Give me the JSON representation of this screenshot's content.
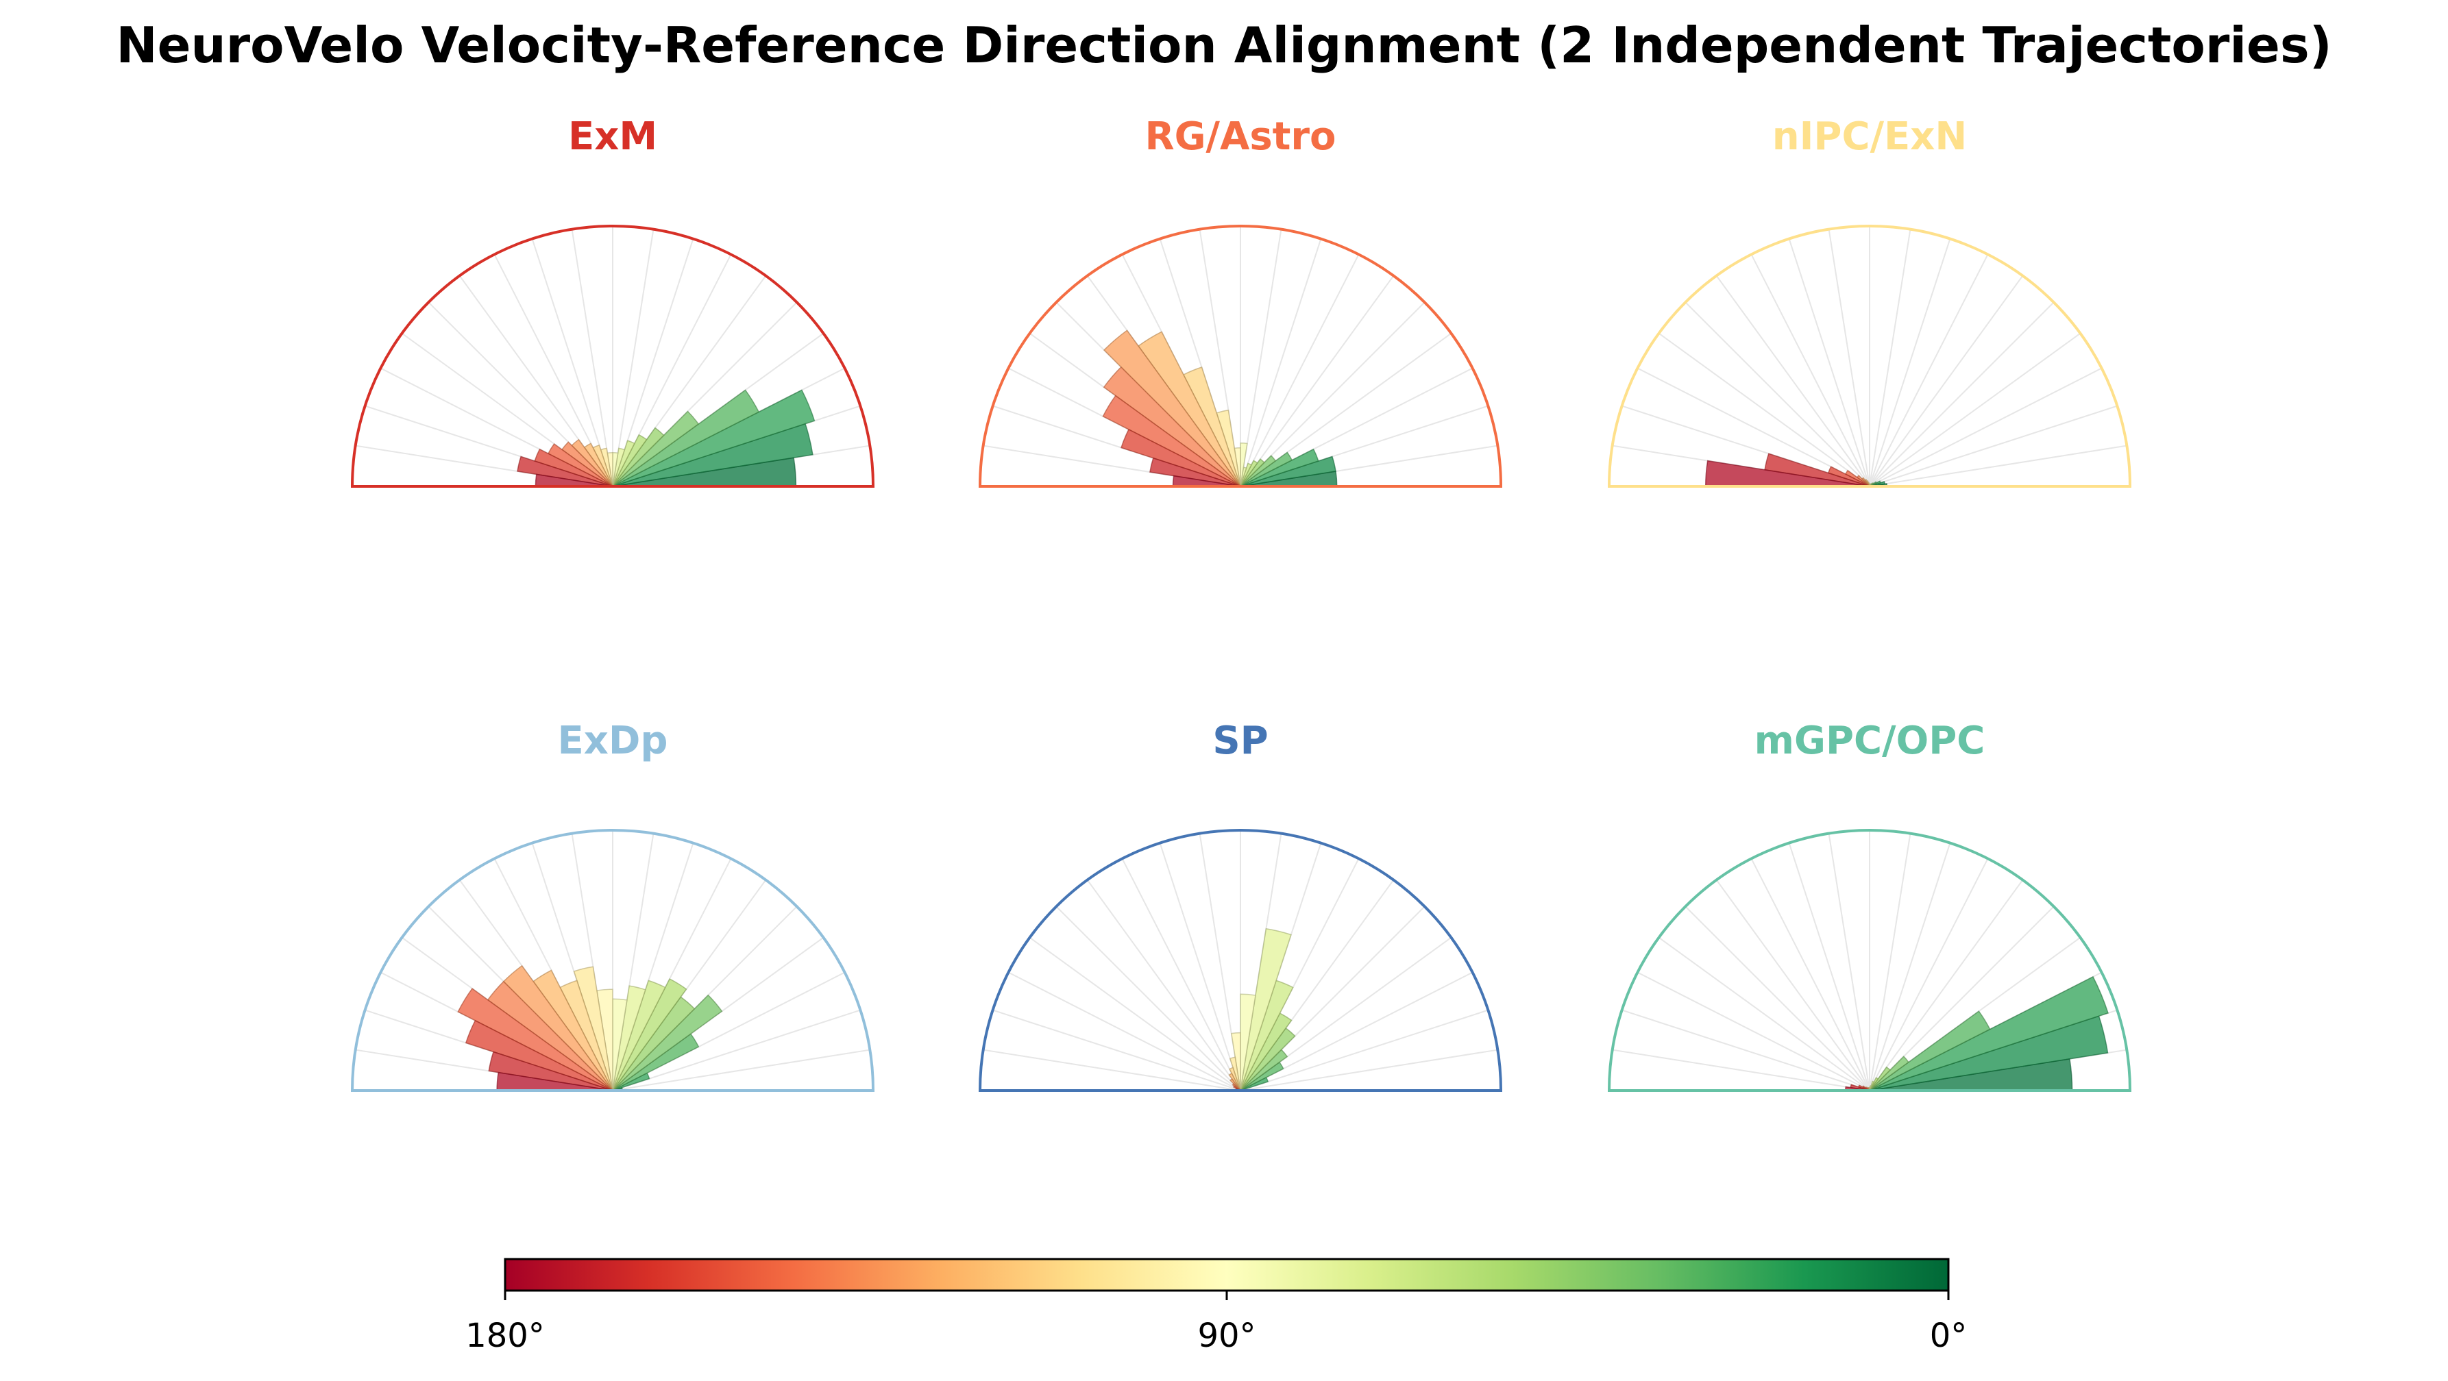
{
  "title": "NeuroVelo Velocity-Reference Direction Alignment (2 Independent Trajectories)",
  "colorbar": {
    "ticks": [
      "180°",
      "90°",
      "0°"
    ],
    "colormap": [
      "#a50026",
      "#d73027",
      "#f46d43",
      "#fdae61",
      "#fee08b",
      "#ffffbf",
      "#d9ef8b",
      "#a6d96a",
      "#66bd63",
      "#1a9850",
      "#006837"
    ]
  },
  "chart_data": [
    {
      "type": "polar-bar",
      "title": "ExM",
      "color": "#d73027",
      "angle_range_deg": [
        0,
        180
      ],
      "bin_width_deg": 9,
      "grid": true,
      "bins_deg": [
        4.5,
        13.5,
        22.5,
        31.5,
        40.5,
        49.5,
        58.5,
        67.5,
        76.5,
        85.5,
        94.5,
        103.5,
        112.5,
        121.5,
        130.5,
        139.5,
        148.5,
        157.5,
        166.5,
        175.5
      ],
      "values": [
        0.19,
        0.21,
        0.22,
        0.17,
        0.11,
        0.075,
        0.06,
        0.05,
        0.04,
        0.035,
        0.035,
        0.04,
        0.045,
        0.05,
        0.06,
        0.065,
        0.075,
        0.085,
        0.1,
        0.08
      ]
    },
    {
      "type": "polar-bar",
      "title": "RG/Astro",
      "color": "#f46d43",
      "angle_range_deg": [
        0,
        180
      ],
      "bin_width_deg": 9,
      "grid": true,
      "bins_deg": [
        4.5,
        13.5,
        22.5,
        31.5,
        40.5,
        49.5,
        58.5,
        67.5,
        76.5,
        85.5,
        94.5,
        103.5,
        112.5,
        121.5,
        130.5,
        139.5,
        148.5,
        157.5,
        166.5,
        175.5
      ],
      "values": [
        0.1,
        0.1,
        0.085,
        0.06,
        0.045,
        0.035,
        0.03,
        0.025,
        0.02,
        0.045,
        0.04,
        0.08,
        0.13,
        0.18,
        0.2,
        0.175,
        0.16,
        0.13,
        0.095,
        0.07
      ]
    },
    {
      "type": "polar-bar",
      "title": "nIPC/ExN",
      "color": "#fee08b",
      "angle_range_deg": [
        0,
        180
      ],
      "bin_width_deg": 9,
      "grid": true,
      "bins_deg": [
        4.5,
        13.5,
        22.5,
        31.5,
        40.5,
        49.5,
        58.5,
        67.5,
        76.5,
        85.5,
        94.5,
        103.5,
        112.5,
        121.5,
        130.5,
        139.5,
        148.5,
        157.5,
        166.5,
        175.5
      ],
      "values": [
        0.018,
        0.016,
        0.012,
        0.008,
        0.005,
        0.004,
        0.003,
        0.002,
        0.002,
        0.002,
        0.003,
        0.004,
        0.006,
        0.008,
        0.011,
        0.016,
        0.028,
        0.045,
        0.11,
        0.17
      ]
    },
    {
      "type": "polar-bar",
      "title": "ExDp",
      "color": "#91bfdb",
      "angle_range_deg": [
        0,
        180
      ],
      "bin_width_deg": 9,
      "grid": true,
      "bins_deg": [
        4.5,
        13.5,
        22.5,
        31.5,
        40.5,
        49.5,
        58.5,
        67.5,
        76.5,
        85.5,
        94.5,
        103.5,
        112.5,
        121.5,
        130.5,
        139.5,
        148.5,
        157.5,
        166.5,
        175.5
      ],
      "values": [
        0.005,
        0.01,
        0.04,
        0.1,
        0.14,
        0.12,
        0.13,
        0.12,
        0.11,
        0.095,
        0.105,
        0.13,
        0.12,
        0.14,
        0.16,
        0.16,
        0.18,
        0.16,
        0.13,
        0.12
      ]
    },
    {
      "type": "polar-bar",
      "title": "SP",
      "color": "#4575b4",
      "angle_range_deg": [
        0,
        180
      ],
      "bin_width_deg": 9,
      "grid": true,
      "bins_deg": [
        4.5,
        13.5,
        22.5,
        31.5,
        40.5,
        49.5,
        58.5,
        67.5,
        76.5,
        85.5,
        94.5,
        103.5,
        112.5,
        121.5,
        130.5,
        139.5,
        148.5,
        157.5,
        166.5,
        175.5
      ],
      "values": [
        0.0,
        0.005,
        0.03,
        0.05,
        0.06,
        0.08,
        0.09,
        0.12,
        0.17,
        0.1,
        0.06,
        0.035,
        0.025,
        0.02,
        0.015,
        0.01,
        0.008,
        0.005,
        0.0,
        0.0
      ]
    },
    {
      "type": "polar-bar",
      "title": "mGPC/OPC",
      "color": "#66c2a5",
      "angle_range_deg": [
        0,
        180
      ],
      "bin_width_deg": 9,
      "grid": true,
      "bins_deg": [
        4.5,
        13.5,
        22.5,
        31.5,
        40.5,
        49.5,
        58.5,
        67.5,
        76.5,
        85.5,
        94.5,
        103.5,
        112.5,
        121.5,
        130.5,
        139.5,
        148.5,
        157.5,
        166.5,
        175.5
      ],
      "values": [
        0.21,
        0.25,
        0.26,
        0.14,
        0.05,
        0.03,
        0.015,
        0.01,
        0.005,
        0.004,
        0.003,
        0.003,
        0.003,
        0.003,
        0.004,
        0.005,
        0.008,
        0.012,
        0.02,
        0.025
      ]
    }
  ]
}
